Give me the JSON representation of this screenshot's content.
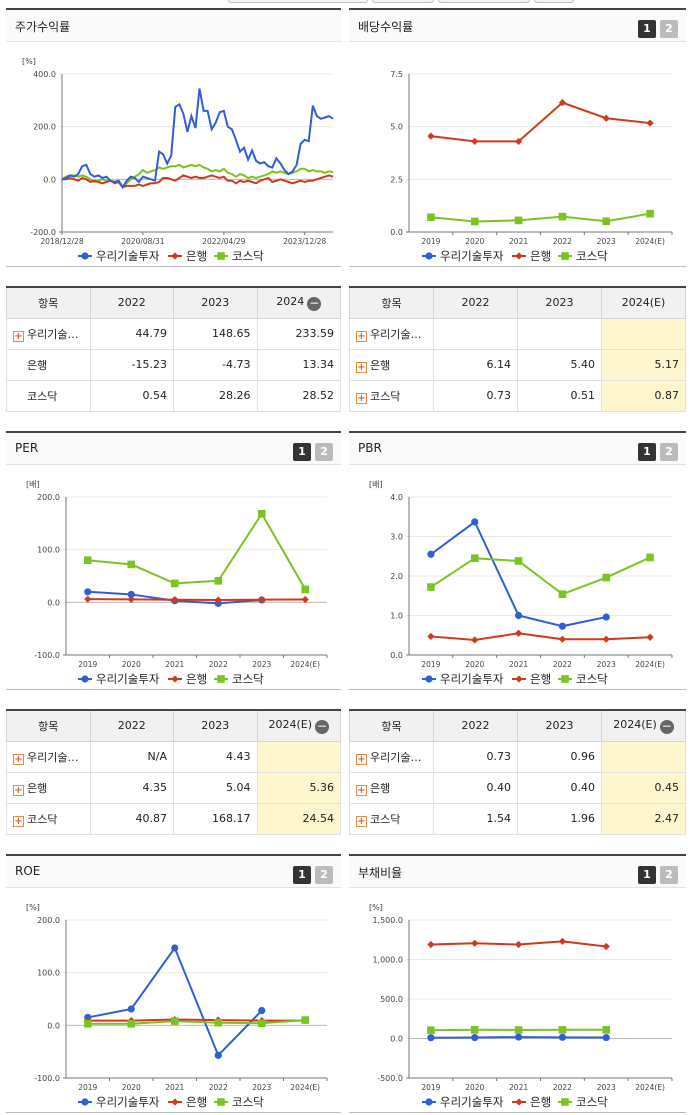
{
  "legend_names": [
    "우리기술투자",
    "은행",
    "코스닥"
  ],
  "colors": {
    "s0": "#2f5fd6",
    "s1": "#d0391c",
    "s2": "#7cc225",
    "highlight": "#fdf6cf"
  },
  "charts": {
    "price": {
      "title": "주가수익률",
      "chart_data": {
        "type": "line",
        "unit": "[%]",
        "ylim": [
          -200,
          400
        ],
        "yticks": [
          "400.0",
          "200.0",
          "0.0",
          "-200.0"
        ],
        "xticks": [
          "2018/12/28",
          "2020/08/31",
          "2022/04/29",
          "2023/12/28"
        ],
        "x": [
          "2018-12",
          "2019-01",
          "2019-02",
          "2019-03",
          "2019-04",
          "2019-05",
          "2019-06",
          "2019-07",
          "2019-08",
          "2019-09",
          "2019-10",
          "2019-11",
          "2019-12",
          "2020-01",
          "2020-02",
          "2020-03",
          "2020-04",
          "2020-05",
          "2020-06",
          "2020-07",
          "2020-08",
          "2020-09",
          "2020-10",
          "2020-11",
          "2020-12",
          "2021-01",
          "2021-02",
          "2021-03",
          "2021-04",
          "2021-05",
          "2021-06",
          "2021-07",
          "2021-08",
          "2021-09",
          "2021-10",
          "2021-11",
          "2021-12",
          "2022-01",
          "2022-02",
          "2022-03",
          "2022-04",
          "2022-05",
          "2022-06",
          "2022-07",
          "2022-08",
          "2022-09",
          "2022-10",
          "2022-11",
          "2022-12",
          "2023-01",
          "2023-02",
          "2023-03",
          "2023-04",
          "2023-05",
          "2023-06",
          "2023-07",
          "2023-08",
          "2023-09",
          "2023-10",
          "2023-11",
          "2023-12",
          "2024-01",
          "2024-02",
          "2024-03",
          "2024-04",
          "2024-05",
          "2024-06",
          "2024-07"
        ],
        "series": [
          {
            "name": "우리기술투자",
            "values": [
              0,
              5,
              15,
              10,
              20,
              50,
              55,
              20,
              10,
              15,
              5,
              10,
              -5,
              -10,
              -5,
              -30,
              -5,
              10,
              5,
              -10,
              10,
              5,
              0,
              -5,
              105,
              95,
              60,
              90,
              275,
              285,
              250,
              180,
              240,
              195,
              345,
              260,
              260,
              190,
              215,
              255,
              260,
              200,
              190,
              150,
              105,
              120,
              75,
              110,
              70,
              60,
              65,
              50,
              45,
              80,
              60,
              35,
              20,
              30,
              55,
              135,
              150,
              145,
              280,
              240,
              230,
              235,
              240,
              230
            ],
            "__note": ""
          },
          {
            "name": "은행",
            "values": [
              0,
              0,
              5,
              0,
              -5,
              5,
              0,
              -10,
              -5,
              -10,
              -15,
              -10,
              -5,
              -15,
              -10,
              -30,
              -25,
              -25,
              -25,
              -20,
              -25,
              -20,
              -15,
              -15,
              -10,
              5,
              5,
              0,
              -5,
              5,
              15,
              10,
              5,
              10,
              5,
              5,
              10,
              15,
              10,
              5,
              10,
              -5,
              -5,
              -15,
              -5,
              -10,
              -5,
              -10,
              -15,
              -5,
              0,
              5,
              -10,
              -5,
              0,
              -5,
              -10,
              -15,
              -10,
              -5,
              -10,
              -5,
              -5,
              0,
              5,
              10,
              15,
              10
            ]
          },
          {
            "name": "코스닥",
            "values": [
              0,
              10,
              15,
              15,
              10,
              15,
              10,
              0,
              -10,
              -5,
              0,
              -5,
              -5,
              -10,
              -10,
              -30,
              -15,
              0,
              10,
              20,
              35,
              25,
              30,
              35,
              45,
              40,
              45,
              50,
              50,
              55,
              45,
              50,
              55,
              50,
              55,
              45,
              40,
              30,
              35,
              30,
              40,
              25,
              20,
              10,
              20,
              15,
              5,
              10,
              5,
              10,
              15,
              20,
              30,
              25,
              30,
              25,
              20,
              25,
              30,
              40,
              40,
              30,
              35,
              30,
              30,
              25,
              30,
              28
            ]
          }
        ]
      }
    },
    "div": {
      "title": "배당수익률",
      "chart_data": {
        "type": "line",
        "ylim": [
          0,
          7.5
        ],
        "yticks": [
          "7.5",
          "5.0",
          "2.5",
          "0.0"
        ],
        "categories": [
          "2019",
          "2020",
          "2021",
          "2022",
          "2023",
          "2024(E)"
        ],
        "series": [
          {
            "name": "은행",
            "values": [
              4.55,
              4.3,
              4.3,
              6.14,
              5.4,
              5.17
            ]
          },
          {
            "name": "코스닥",
            "values": [
              0.7,
              0.5,
              0.55,
              0.73,
              0.51,
              0.87
            ]
          }
        ]
      }
    },
    "per": {
      "title": "PER",
      "chart_data": {
        "type": "line",
        "unit": "[배]",
        "ylim": [
          -100,
          200
        ],
        "yticks": [
          "200.0",
          "100.0",
          "0.0",
          "-100.0"
        ],
        "categories": [
          "2019",
          "2020",
          "2021",
          "2022",
          "2023",
          "2024(E)"
        ],
        "series": [
          {
            "name": "우리기술투자",
            "values": [
              20,
              15,
              3,
              -2,
              4.43,
              null
            ]
          },
          {
            "name": "은행",
            "values": [
              6,
              5.5,
              5,
              4.35,
              5.04,
              5.36
            ]
          },
          {
            "name": "코스닥",
            "values": [
              80,
              72,
              36,
              40.87,
              168.17,
              24.54
            ]
          }
        ]
      }
    },
    "pbr": {
      "title": "PBR",
      "chart_data": {
        "type": "line",
        "unit": "[배]",
        "ylim": [
          0,
          4
        ],
        "yticks": [
          "4.0",
          "3.0",
          "2.0",
          "1.0",
          "0.0"
        ],
        "categories": [
          "2019",
          "2020",
          "2021",
          "2022",
          "2023",
          "2024(E)"
        ],
        "series": [
          {
            "name": "우리기술투자",
            "values": [
              2.55,
              3.37,
              1.0,
              0.73,
              0.96,
              null
            ]
          },
          {
            "name": "은행",
            "values": [
              0.47,
              0.38,
              0.55,
              0.4,
              0.4,
              0.45
            ]
          },
          {
            "name": "코스닥",
            "values": [
              1.72,
              2.45,
              2.38,
              1.54,
              1.96,
              2.47
            ]
          }
        ]
      }
    },
    "roe": {
      "title": "ROE",
      "chart_data": {
        "type": "line",
        "unit": "[%]",
        "ylim": [
          -100,
          200
        ],
        "yticks": [
          "200.0",
          "100.0",
          "0.0",
          "-100.0"
        ],
        "categories": [
          "2019",
          "2020",
          "2021",
          "2022",
          "2023",
          "2024(E)"
        ],
        "series": [
          {
            "name": "우리기술투자",
            "values": [
              15,
              31,
              147,
              -57,
              28,
              null
            ]
          },
          {
            "name": "은행",
            "values": [
              9,
              9,
              11,
              10,
              9,
              9
            ]
          },
          {
            "name": "코스닥",
            "values": [
              3,
              3,
              8,
              5,
              4,
              10
            ]
          }
        ]
      }
    },
    "debt": {
      "title": "부채비율",
      "chart_data": {
        "type": "line",
        "unit": "[%]",
        "ylim": [
          -500,
          1500
        ],
        "yticks": [
          "1,500.0",
          "1,000.0",
          "500.0",
          "0.0",
          "-500.0"
        ],
        "categories": [
          "2019",
          "2020",
          "2021",
          "2022",
          "2023",
          "2024(E)"
        ],
        "series": [
          {
            "name": "우리기술투자",
            "values": [
              10,
              12,
              18,
              15,
              12,
              null
            ]
          },
          {
            "name": "은행",
            "values": [
              1190,
              1205,
              1190,
              1230,
              1165,
              null
            ]
          },
          {
            "name": "코스닥",
            "values": [
              105,
              110,
              108,
              110,
              110,
              null
            ]
          }
        ]
      }
    }
  },
  "tables": {
    "price": {
      "headers": [
        "항목",
        "2022",
        "2023",
        "2024"
      ],
      "rows": [
        {
          "name": "우리기술…",
          "vals": [
            "44.79",
            "148.65",
            "233.59"
          ]
        },
        {
          "name": "은행",
          "vals": [
            "-15.23",
            "-4.73",
            "13.34"
          ]
        },
        {
          "name": "코스닥",
          "vals": [
            "0.54",
            "28.26",
            "28.52"
          ]
        }
      ]
    },
    "div": {
      "headers": [
        "항목",
        "2022",
        "2023",
        "2024(E)"
      ],
      "rows": [
        {
          "name": "우리기술…",
          "vals": [
            "",
            "",
            ""
          ]
        },
        {
          "name": "은행",
          "vals": [
            "6.14",
            "5.40",
            "5.17"
          ]
        },
        {
          "name": "코스닥",
          "vals": [
            "0.73",
            "0.51",
            "0.87"
          ]
        }
      ]
    },
    "per": {
      "headers": [
        "항목",
        "2022",
        "2023",
        "2024(E)"
      ],
      "rows": [
        {
          "name": "우리기술…",
          "vals": [
            "N/A",
            "4.43",
            ""
          ]
        },
        {
          "name": "은행",
          "vals": [
            "4.35",
            "5.04",
            "5.36"
          ]
        },
        {
          "name": "코스닥",
          "vals": [
            "40.87",
            "168.17",
            "24.54"
          ]
        }
      ]
    },
    "pbr": {
      "headers": [
        "항목",
        "2022",
        "2023",
        "2024(E)"
      ],
      "rows": [
        {
          "name": "우리기술…",
          "vals": [
            "0.73",
            "0.96",
            ""
          ]
        },
        {
          "name": "은행",
          "vals": [
            "0.40",
            "0.40",
            "0.45"
          ]
        },
        {
          "name": "코스닥",
          "vals": [
            "1.54",
            "1.96",
            "2.47"
          ]
        }
      ]
    }
  },
  "btn_labels": [
    "1",
    "2"
  ],
  "plus_glyph": "+",
  "minus_glyph": "−"
}
